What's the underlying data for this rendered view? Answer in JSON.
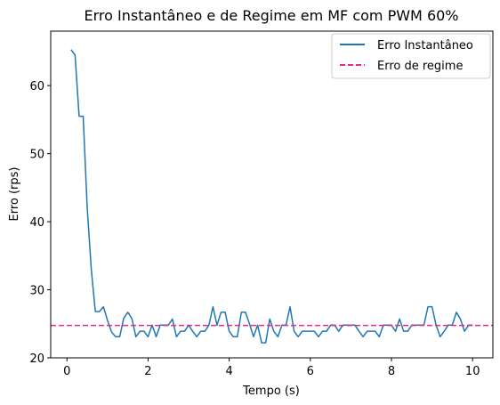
{
  "chart_data": {
    "type": "line",
    "title": "Erro Instantâneo e de Regime em MF com PWM 60%",
    "xlabel": "Tempo (s)",
    "ylabel": "Erro (rps)",
    "xlim": [
      -0.4,
      10.5
    ],
    "ylim": [
      20,
      68
    ],
    "xticks": [
      0,
      2,
      4,
      6,
      8,
      10
    ],
    "yticks": [
      20,
      30,
      40,
      50,
      60
    ],
    "grid": false,
    "legend_position": "top-right",
    "series": [
      {
        "name": "Erro Instantâneo",
        "style": "solid",
        "color": "#1f77b4",
        "x": [
          0.1,
          0.2,
          0.3,
          0.4,
          0.5,
          0.6,
          0.7,
          0.8,
          0.9,
          1.0,
          1.1,
          1.2,
          1.3,
          1.4,
          1.5,
          1.6,
          1.7,
          1.8,
          1.9,
          2.0,
          2.1,
          2.2,
          2.3,
          2.4,
          2.5,
          2.6,
          2.7,
          2.8,
          2.9,
          3.0,
          3.1,
          3.2,
          3.3,
          3.4,
          3.5,
          3.6,
          3.7,
          3.8,
          3.9,
          4.0,
          4.1,
          4.2,
          4.3,
          4.4,
          4.5,
          4.6,
          4.7,
          4.8,
          4.9,
          5.0,
          5.1,
          5.2,
          5.3,
          5.4,
          5.5,
          5.6,
          5.7,
          5.8,
          5.9,
          6.0,
          6.1,
          6.2,
          6.3,
          6.4,
          6.5,
          6.6,
          6.7,
          6.8,
          6.9,
          7.0,
          7.1,
          7.2,
          7.3,
          7.4,
          7.5,
          7.6,
          7.7,
          7.8,
          7.9,
          8.0,
          8.1,
          8.2,
          8.3,
          8.4,
          8.5,
          8.6,
          8.7,
          8.8,
          8.9,
          9.0,
          9.1,
          9.2,
          9.3,
          9.4,
          9.5,
          9.6,
          9.7,
          9.8,
          9.9,
          10.0
        ],
        "y": [
          65.3,
          64.5,
          55.5,
          55.5,
          42.0,
          33.0,
          26.8,
          26.8,
          27.5,
          25.5,
          23.8,
          23.1,
          23.1,
          25.8,
          26.7,
          25.8,
          23.1,
          23.9,
          23.9,
          23.1,
          24.8,
          23.1,
          24.8,
          24.8,
          24.8,
          25.7,
          23.1,
          23.9,
          23.9,
          24.8,
          23.9,
          23.1,
          23.9,
          23.9,
          24.8,
          27.5,
          24.8,
          26.7,
          26.7,
          23.9,
          23.1,
          23.1,
          26.7,
          26.7,
          25.0,
          23.1,
          24.8,
          22.2,
          22.2,
          25.7,
          23.9,
          23.1,
          24.8,
          24.8,
          27.5,
          23.9,
          23.1,
          23.9,
          23.9,
          23.9,
          23.9,
          23.1,
          23.9,
          23.9,
          24.8,
          24.8,
          23.9,
          24.8,
          24.8,
          24.8,
          24.8,
          23.9,
          23.1,
          23.9,
          23.9,
          23.9,
          23.1,
          24.8,
          24.8,
          24.8,
          23.9,
          25.7,
          23.9,
          23.9,
          24.8,
          24.8,
          24.8,
          24.8,
          27.5,
          27.5,
          24.8,
          23.1,
          23.9,
          24.8,
          24.8,
          26.7,
          25.7,
          23.9,
          24.8,
          24.8
        ]
      },
      {
        "name": "Erro de regime",
        "style": "dashed",
        "color": "#e7298a",
        "constant": 24.75
      }
    ]
  }
}
